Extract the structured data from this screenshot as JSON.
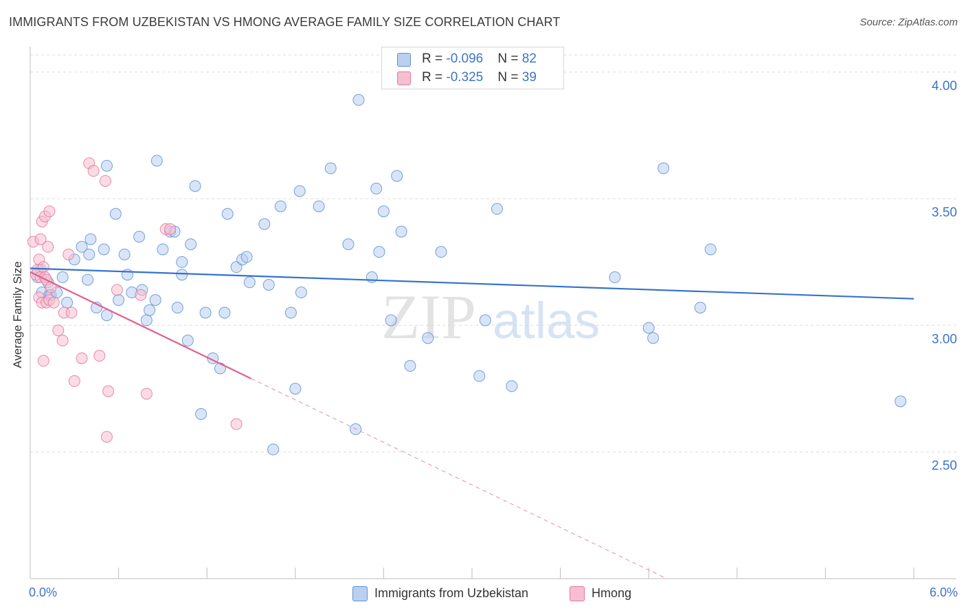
{
  "chart_data": {
    "type": "scatter",
    "title": "IMMIGRANTS FROM UZBEKISTAN VS HMONG AVERAGE FAMILY SIZE CORRELATION CHART",
    "source": "Source: ZipAtlas.com",
    "xlabel": "",
    "ylabel": "Average Family Size",
    "xlim": [
      0,
      6
    ],
    "ylim": [
      2.0,
      4.1
    ],
    "x_tick_labels": [
      "0.0%",
      "6.0%"
    ],
    "y_ticks": [
      {
        "value": 2.5,
        "label": "2.50"
      },
      {
        "value": 3.0,
        "label": "3.00"
      },
      {
        "value": 3.5,
        "label": "3.50"
      },
      {
        "value": 4.0,
        "label": "4.00"
      }
    ],
    "grid": true,
    "watermark": {
      "zip": "ZIP",
      "atlas": "atlas"
    },
    "legend_top": [
      {
        "r_label": "R = ",
        "r_value": "-0.096",
        "n_label": "N = ",
        "n_value": "82"
      },
      {
        "r_label": "R = ",
        "r_value": "-0.325",
        "n_label": "N = ",
        "n_value": "39"
      }
    ],
    "series": [
      {
        "name": "Immigrants from Uzbekistan",
        "color": "#5b8fd6",
        "fill": "#b9d0f0",
        "trend": {
          "x0": 0.0,
          "y0": 3.225,
          "x1": 6.0,
          "y1": 3.105
        },
        "points": [
          [
            0.05,
            3.19
          ],
          [
            0.07,
            3.22
          ],
          [
            0.12,
            3.17
          ],
          [
            0.08,
            3.13
          ],
          [
            0.13,
            3.12
          ],
          [
            0.14,
            3.12
          ],
          [
            0.22,
            3.19
          ],
          [
            0.25,
            3.09
          ],
          [
            0.3,
            3.26
          ],
          [
            0.35,
            3.31
          ],
          [
            0.41,
            3.34
          ],
          [
            0.4,
            3.28
          ],
          [
            0.5,
            3.3
          ],
          [
            0.39,
            3.18
          ],
          [
            0.45,
            3.07
          ],
          [
            0.52,
            3.04
          ],
          [
            0.52,
            3.63
          ],
          [
            0.58,
            3.44
          ],
          [
            0.64,
            3.28
          ],
          [
            0.66,
            3.2
          ],
          [
            0.69,
            3.13
          ],
          [
            0.74,
            3.35
          ],
          [
            0.76,
            3.14
          ],
          [
            0.79,
            3.02
          ],
          [
            0.81,
            3.06
          ],
          [
            0.85,
            3.1
          ],
          [
            0.86,
            3.65
          ],
          [
            0.9,
            3.3
          ],
          [
            0.95,
            3.37
          ],
          [
            0.98,
            3.37
          ],
          [
            1.0,
            3.07
          ],
          [
            1.03,
            3.2
          ],
          [
            1.03,
            3.25
          ],
          [
            1.07,
            2.94
          ],
          [
            1.09,
            3.32
          ],
          [
            1.12,
            3.55
          ],
          [
            1.16,
            2.65
          ],
          [
            1.19,
            3.05
          ],
          [
            1.24,
            2.87
          ],
          [
            1.29,
            2.83
          ],
          [
            1.32,
            3.05
          ],
          [
            1.34,
            3.44
          ],
          [
            1.4,
            3.23
          ],
          [
            1.44,
            3.26
          ],
          [
            1.47,
            3.27
          ],
          [
            1.49,
            3.17
          ],
          [
            1.59,
            3.4
          ],
          [
            1.62,
            3.16
          ],
          [
            1.65,
            2.51
          ],
          [
            1.7,
            3.47
          ],
          [
            1.77,
            3.05
          ],
          [
            1.8,
            2.75
          ],
          [
            1.84,
            3.13
          ],
          [
            1.83,
            3.53
          ],
          [
            1.96,
            3.47
          ],
          [
            2.04,
            3.62
          ],
          [
            2.16,
            3.32
          ],
          [
            2.21,
            2.59
          ],
          [
            2.23,
            3.89
          ],
          [
            2.32,
            3.19
          ],
          [
            2.35,
            3.54
          ],
          [
            2.37,
            3.29
          ],
          [
            2.4,
            3.45
          ],
          [
            2.45,
            3.02
          ],
          [
            2.49,
            3.59
          ],
          [
            2.52,
            3.37
          ],
          [
            2.58,
            2.84
          ],
          [
            2.7,
            2.95
          ],
          [
            2.79,
            3.29
          ],
          [
            3.05,
            2.8
          ],
          [
            3.09,
            3.02
          ],
          [
            3.17,
            3.46
          ],
          [
            3.27,
            2.76
          ],
          [
            3.97,
            3.19
          ],
          [
            4.2,
            2.99
          ],
          [
            4.23,
            2.95
          ],
          [
            4.3,
            3.62
          ],
          [
            4.55,
            3.07
          ],
          [
            4.62,
            3.3
          ],
          [
            5.91,
            2.7
          ],
          [
            0.18,
            3.13
          ],
          [
            0.6,
            3.1
          ]
        ]
      },
      {
        "name": "Hmong",
        "color": "#e6769b",
        "fill": "#f6bfd0",
        "trend": {
          "x0": 0.0,
          "y0": 3.21,
          "x1": 1.5,
          "y1": 2.79
        },
        "trend_dashed": {
          "x0": 1.5,
          "y0": 2.79,
          "x1": 6.0,
          "y1": 1.53
        },
        "points": [
          [
            0.02,
            3.33
          ],
          [
            0.04,
            3.2
          ],
          [
            0.05,
            3.22
          ],
          [
            0.06,
            3.26
          ],
          [
            0.07,
            3.19
          ],
          [
            0.06,
            3.11
          ],
          [
            0.08,
            3.09
          ],
          [
            0.09,
            3.23
          ],
          [
            0.1,
            3.19
          ],
          [
            0.08,
            3.41
          ],
          [
            0.1,
            3.43
          ],
          [
            0.11,
            3.09
          ],
          [
            0.11,
            3.18
          ],
          [
            0.12,
            3.31
          ],
          [
            0.13,
            3.45
          ],
          [
            0.13,
            3.1
          ],
          [
            0.14,
            3.15
          ],
          [
            0.16,
            3.09
          ],
          [
            0.07,
            3.34
          ],
          [
            0.09,
            2.86
          ],
          [
            0.19,
            2.98
          ],
          [
            0.22,
            2.94
          ],
          [
            0.23,
            3.05
          ],
          [
            0.26,
            3.28
          ],
          [
            0.28,
            3.05
          ],
          [
            0.3,
            2.78
          ],
          [
            0.35,
            2.87
          ],
          [
            0.4,
            3.64
          ],
          [
            0.43,
            3.61
          ],
          [
            0.47,
            2.88
          ],
          [
            0.51,
            3.57
          ],
          [
            0.52,
            2.56
          ],
          [
            0.53,
            2.74
          ],
          [
            0.59,
            3.14
          ],
          [
            0.75,
            3.12
          ],
          [
            0.79,
            2.73
          ],
          [
            0.92,
            3.38
          ],
          [
            0.95,
            3.38
          ],
          [
            1.4,
            2.61
          ]
        ]
      }
    ]
  }
}
